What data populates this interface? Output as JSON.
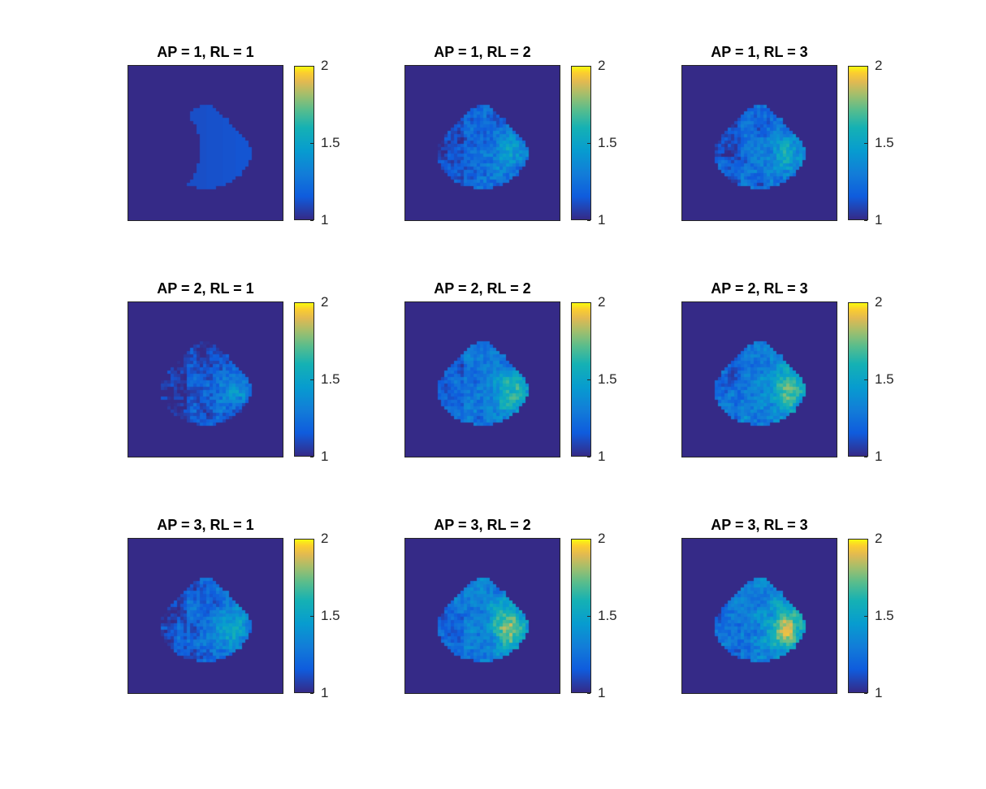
{
  "chart_data": [
    {
      "type": "heatmap",
      "title": "AP = 1, RL = 1",
      "clim": [
        1,
        2
      ],
      "colorbar_ticks": [
        "1",
        "1.5",
        "2"
      ],
      "colormap": "parula",
      "mean_level": 1.12
    },
    {
      "type": "heatmap",
      "title": "AP = 1, RL = 2",
      "clim": [
        1,
        2
      ],
      "colorbar_ticks": [
        "1",
        "1.5",
        "2"
      ],
      "colormap": "parula",
      "mean_level": 1.25
    },
    {
      "type": "heatmap",
      "title": "AP = 1, RL = 3",
      "clim": [
        1,
        2
      ],
      "colorbar_ticks": [
        "1",
        "1.5",
        "2"
      ],
      "colormap": "parula",
      "mean_level": 1.3
    },
    {
      "type": "heatmap",
      "title": "AP = 2, RL = 1",
      "clim": [
        1,
        2
      ],
      "colorbar_ticks": [
        "1",
        "1.5",
        "2"
      ],
      "colormap": "parula",
      "mean_level": 1.2
    },
    {
      "type": "heatmap",
      "title": "AP = 2, RL = 2",
      "clim": [
        1,
        2
      ],
      "colorbar_ticks": [
        "1",
        "1.5",
        "2"
      ],
      "colormap": "parula",
      "mean_level": 1.35
    },
    {
      "type": "heatmap",
      "title": "AP = 2, RL = 3",
      "clim": [
        1,
        2
      ],
      "colorbar_ticks": [
        "1",
        "1.5",
        "2"
      ],
      "colormap": "parula",
      "mean_level": 1.4
    },
    {
      "type": "heatmap",
      "title": "AP = 3, RL = 1",
      "clim": [
        1,
        2
      ],
      "colorbar_ticks": [
        "1",
        "1.5",
        "2"
      ],
      "colormap": "parula",
      "mean_level": 1.28
    },
    {
      "type": "heatmap",
      "title": "AP = 3, RL = 2",
      "clim": [
        1,
        2
      ],
      "colorbar_ticks": [
        "1",
        "1.5",
        "2"
      ],
      "colormap": "parula",
      "mean_level": 1.42
    },
    {
      "type": "heatmap",
      "title": "AP = 3, RL = 3",
      "clim": [
        1,
        2
      ],
      "colorbar_ticks": [
        "1",
        "1.5",
        "2"
      ],
      "colormap": "parula",
      "mean_level": 1.45
    }
  ],
  "colors": {
    "background_region": "#352a87",
    "axes_edge": "#262626",
    "parula_low": "#352a87",
    "parula_mid": "#20b2aa",
    "parula_high": "#f9fb0e"
  }
}
